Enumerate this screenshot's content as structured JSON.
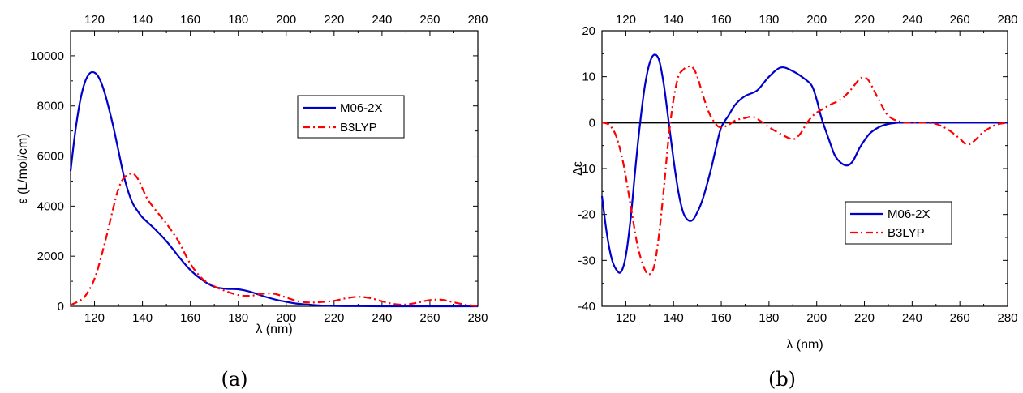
{
  "chart_data": [
    {
      "type": "line",
      "caption": "(a)",
      "xlabel": "λ (nm)",
      "ylabel": "ε (L/mol/cm)",
      "xlim": [
        110,
        280
      ],
      "ylim": [
        0,
        11000
      ],
      "xticks": [
        120,
        140,
        160,
        180,
        200,
        220,
        240,
        260,
        280
      ],
      "yticks": [
        0,
        2000,
        4000,
        6000,
        8000,
        10000
      ],
      "grid": false,
      "legend_position": "upper-right",
      "series": [
        {
          "name": "M06-2X",
          "color": "#0000cc",
          "dash": "solid",
          "x": [
            110,
            112,
            114,
            116,
            118,
            120,
            122,
            124,
            126,
            128,
            130,
            132,
            134,
            136,
            138,
            140,
            145,
            150,
            155,
            160,
            165,
            170,
            175,
            180,
            185,
            190,
            195,
            200,
            205,
            210,
            215,
            220,
            230,
            240,
            250,
            260,
            270,
            280
          ],
          "y": [
            5400,
            7000,
            8200,
            8950,
            9300,
            9330,
            9100,
            8600,
            7900,
            7100,
            6200,
            5300,
            4600,
            4100,
            3800,
            3550,
            3100,
            2600,
            2000,
            1450,
            1050,
            780,
            700,
            680,
            580,
            420,
            280,
            180,
            100,
            60,
            30,
            15,
            5,
            0,
            0,
            0,
            0,
            0
          ]
        },
        {
          "name": "B3LYP",
          "color": "#ff0000",
          "dash": "dashdot",
          "x": [
            110,
            115,
            118,
            120,
            122,
            125,
            128,
            130,
            132,
            134,
            136,
            138,
            140,
            142,
            145,
            150,
            155,
            160,
            165,
            170,
            175,
            180,
            185,
            190,
            195,
            200,
            205,
            210,
            215,
            220,
            225,
            230,
            235,
            240,
            245,
            250,
            255,
            260,
            265,
            270,
            275,
            280
          ],
          "y": [
            50,
            300,
            700,
            1100,
            1700,
            2800,
            4000,
            4700,
            5100,
            5250,
            5300,
            5100,
            4700,
            4300,
            3900,
            3300,
            2600,
            1700,
            1100,
            800,
            600,
            450,
            420,
            500,
            500,
            350,
            200,
            150,
            170,
            220,
            320,
            380,
            330,
            200,
            90,
            70,
            150,
            250,
            260,
            160,
            60,
            10
          ]
        }
      ]
    },
    {
      "type": "line",
      "caption": "(b)",
      "xlabel": "λ (nm)",
      "ylabel": "Δε",
      "xlim": [
        110,
        280
      ],
      "ylim": [
        -40,
        20
      ],
      "xticks": [
        120,
        140,
        160,
        180,
        200,
        220,
        240,
        260,
        280
      ],
      "yticks": [
        -40,
        -30,
        -20,
        -10,
        0,
        10,
        20
      ],
      "grid": false,
      "zero_line": true,
      "legend_position": "lower-right",
      "series": [
        {
          "name": "M06-2X",
          "color": "#0000cc",
          "dash": "solid",
          "x": [
            110,
            112,
            114,
            116,
            118,
            120,
            122,
            124,
            126,
            128,
            130,
            132,
            134,
            136,
            138,
            140,
            142,
            144,
            146,
            148,
            150,
            152,
            154,
            156,
            158,
            160,
            163,
            166,
            170,
            175,
            180,
            185,
            190,
            195,
            198,
            200,
            202,
            205,
            208,
            212,
            215,
            218,
            222,
            226,
            230,
            235,
            240,
            260,
            280
          ],
          "y": [
            -16,
            -24,
            -29.5,
            -32,
            -32.5,
            -29,
            -21,
            -10,
            0,
            8,
            13,
            14.8,
            13.5,
            8,
            0,
            -8,
            -15,
            -19.5,
            -21.2,
            -21.2,
            -19.5,
            -17,
            -13.5,
            -9.5,
            -5,
            -1,
            1.5,
            4,
            5.8,
            7,
            10,
            12,
            11.2,
            9.5,
            8,
            5,
            1,
            -3.5,
            -7.5,
            -9.3,
            -8.5,
            -5.5,
            -2.5,
            -1,
            -0.3,
            0,
            0,
            0,
            0
          ]
        },
        {
          "name": "B3LYP",
          "color": "#ff0000",
          "dash": "dashdot",
          "x": [
            110,
            113,
            116,
            119,
            122,
            125,
            128,
            130,
            132,
            134,
            136,
            138,
            140,
            142,
            144,
            146,
            148,
            150,
            152,
            155,
            158,
            160,
            163,
            166,
            170,
            173,
            176,
            180,
            185,
            190,
            193,
            196,
            199,
            202,
            206,
            210,
            214,
            218,
            220,
            222,
            226,
            230,
            235,
            240,
            245,
            250,
            255,
            260,
            263,
            266,
            270,
            275,
            280
          ],
          "y": [
            0,
            -0.5,
            -3,
            -9,
            -18,
            -27,
            -32,
            -33,
            -31,
            -24,
            -14,
            -3,
            5,
            10,
            11.5,
            12.2,
            12,
            10,
            6.5,
            2,
            -0.5,
            -1,
            -0.5,
            0.5,
            1,
            1.3,
            0.5,
            -1,
            -2.5,
            -3.6,
            -2.5,
            0,
            1.8,
            2.8,
            4,
            5,
            7,
            9.5,
            9.8,
            9,
            5,
            1.5,
            0.2,
            0,
            0,
            -0.3,
            -1.5,
            -3.5,
            -4.8,
            -4,
            -2,
            -0.5,
            0
          ]
        }
      ]
    }
  ]
}
